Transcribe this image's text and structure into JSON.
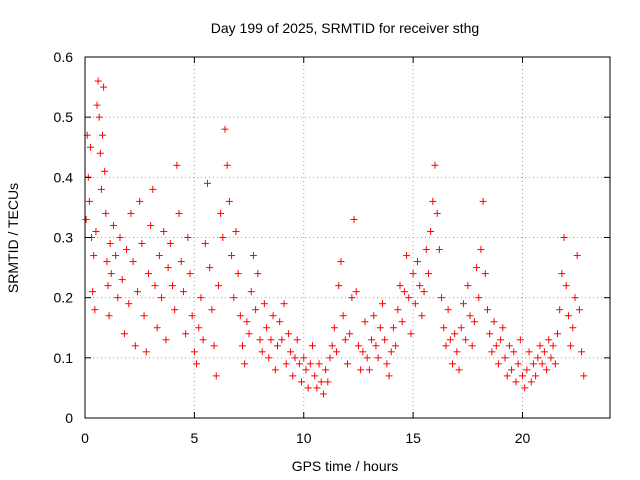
{
  "chart_data": {
    "type": "scatter",
    "title": "Day 199 of 2025, SRMTID for receiver sthg",
    "xlabel": "GPS time / hours",
    "ylabel": "SRMTID / TECUs",
    "xlim": [
      0,
      24
    ],
    "ylim": [
      0,
      0.6
    ],
    "x_ticks": [
      0,
      5,
      10,
      15,
      20
    ],
    "x_tick_labels": [
      "0",
      "5",
      "10",
      "15",
      "20"
    ],
    "y_ticks": [
      0,
      0.1,
      0.2,
      0.3,
      0.4,
      0.5,
      0.6
    ],
    "y_tick_labels": [
      "0",
      "0.1",
      "0.2",
      "0.3",
      "0.4",
      "0.5",
      "0.6"
    ],
    "grid": true,
    "marker": "+",
    "marker_color": "#ff0000",
    "series": [
      {
        "name": "SRMTID",
        "points": [
          [
            0.05,
            0.33
          ],
          [
            0.1,
            0.47
          ],
          [
            0.15,
            0.4
          ],
          [
            0.2,
            0.36
          ],
          [
            0.25,
            0.45
          ],
          [
            0.3,
            0.3
          ],
          [
            0.35,
            0.21
          ],
          [
            0.4,
            0.27
          ],
          [
            0.45,
            0.18
          ],
          [
            0.5,
            0.31
          ],
          [
            0.55,
            0.52
          ],
          [
            0.6,
            0.56
          ],
          [
            0.65,
            0.5
          ],
          [
            0.7,
            0.44
          ],
          [
            0.75,
            0.38
          ],
          [
            0.8,
            0.47
          ],
          [
            0.85,
            0.55
          ],
          [
            0.9,
            0.41
          ],
          [
            0.95,
            0.34
          ],
          [
            1.0,
            0.26
          ],
          [
            1.05,
            0.22
          ],
          [
            1.1,
            0.17
          ],
          [
            1.15,
            0.29
          ],
          [
            1.2,
            0.24
          ],
          [
            1.3,
            0.32
          ],
          [
            1.4,
            0.27
          ],
          [
            1.5,
            0.2
          ],
          [
            1.6,
            0.3
          ],
          [
            1.7,
            0.23
          ],
          [
            1.8,
            0.14
          ],
          [
            1.9,
            0.28
          ],
          [
            2.0,
            0.19
          ],
          [
            2.1,
            0.34
          ],
          [
            2.2,
            0.26
          ],
          [
            2.3,
            0.12
          ],
          [
            2.4,
            0.21
          ],
          [
            2.5,
            0.36
          ],
          [
            2.6,
            0.29
          ],
          [
            2.7,
            0.17
          ],
          [
            2.8,
            0.11
          ],
          [
            2.9,
            0.24
          ],
          [
            3.0,
            0.32
          ],
          [
            3.1,
            0.38
          ],
          [
            3.2,
            0.22
          ],
          [
            3.3,
            0.15
          ],
          [
            3.4,
            0.27
          ],
          [
            3.5,
            0.2
          ],
          [
            3.6,
            0.31
          ],
          [
            3.7,
            0.13
          ],
          [
            3.8,
            0.25
          ],
          [
            3.9,
            0.29
          ],
          [
            4.0,
            0.22
          ],
          [
            4.1,
            0.18
          ],
          [
            4.2,
            0.42
          ],
          [
            4.3,
            0.34
          ],
          [
            4.4,
            0.26
          ],
          [
            4.5,
            0.21
          ],
          [
            4.6,
            0.14
          ],
          [
            4.7,
            0.3
          ],
          [
            4.8,
            0.24
          ],
          [
            4.9,
            0.17
          ],
          [
            5.0,
            0.11
          ],
          [
            5.1,
            0.09
          ],
          [
            5.2,
            0.15
          ],
          [
            5.3,
            0.2
          ],
          [
            5.4,
            0.13
          ],
          [
            5.5,
            0.29
          ],
          [
            5.6,
            0.39
          ],
          [
            5.7,
            0.25
          ],
          [
            5.8,
            0.18
          ],
          [
            5.9,
            0.12
          ],
          [
            6.0,
            0.07
          ],
          [
            6.1,
            0.22
          ],
          [
            6.2,
            0.34
          ],
          [
            6.3,
            0.3
          ],
          [
            6.4,
            0.48
          ],
          [
            6.5,
            0.42
          ],
          [
            6.6,
            0.36
          ],
          [
            6.7,
            0.27
          ],
          [
            6.8,
            0.2
          ],
          [
            6.9,
            0.31
          ],
          [
            7.0,
            0.24
          ],
          [
            7.1,
            0.17
          ],
          [
            7.2,
            0.12
          ],
          [
            7.3,
            0.09
          ],
          [
            7.4,
            0.16
          ],
          [
            7.5,
            0.14
          ],
          [
            7.6,
            0.21
          ],
          [
            7.7,
            0.27
          ],
          [
            7.8,
            0.18
          ],
          [
            7.9,
            0.24
          ],
          [
            8.0,
            0.13
          ],
          [
            8.1,
            0.11
          ],
          [
            8.2,
            0.19
          ],
          [
            8.3,
            0.15
          ],
          [
            8.4,
            0.1
          ],
          [
            8.5,
            0.13
          ],
          [
            8.6,
            0.17
          ],
          [
            8.7,
            0.08
          ],
          [
            8.8,
            0.12
          ],
          [
            8.9,
            0.16
          ],
          [
            9.0,
            0.13
          ],
          [
            9.1,
            0.19
          ],
          [
            9.2,
            0.09
          ],
          [
            9.3,
            0.14
          ],
          [
            9.4,
            0.11
          ],
          [
            9.5,
            0.07
          ],
          [
            9.6,
            0.1
          ],
          [
            9.7,
            0.13
          ],
          [
            9.8,
            0.09
          ],
          [
            9.9,
            0.06
          ],
          [
            10.0,
            0.1
          ],
          [
            10.1,
            0.08
          ],
          [
            10.2,
            0.05
          ],
          [
            10.3,
            0.09
          ],
          [
            10.4,
            0.12
          ],
          [
            10.5,
            0.07
          ],
          [
            10.6,
            0.05
          ],
          [
            10.7,
            0.09
          ],
          [
            10.8,
            0.06
          ],
          [
            10.9,
            0.04
          ],
          [
            11.0,
            0.08
          ],
          [
            11.1,
            0.06
          ],
          [
            11.2,
            0.1
          ],
          [
            11.3,
            0.12
          ],
          [
            11.4,
            0.15
          ],
          [
            11.5,
            0.11
          ],
          [
            11.6,
            0.22
          ],
          [
            11.7,
            0.26
          ],
          [
            11.8,
            0.17
          ],
          [
            11.9,
            0.13
          ],
          [
            12.0,
            0.09
          ],
          [
            12.1,
            0.14
          ],
          [
            12.2,
            0.2
          ],
          [
            12.3,
            0.33
          ],
          [
            12.4,
            0.21
          ],
          [
            12.5,
            0.12
          ],
          [
            12.6,
            0.08
          ],
          [
            12.7,
            0.11
          ],
          [
            12.8,
            0.16
          ],
          [
            12.9,
            0.1
          ],
          [
            13.0,
            0.08
          ],
          [
            13.1,
            0.13
          ],
          [
            13.2,
            0.17
          ],
          [
            13.3,
            0.12
          ],
          [
            13.4,
            0.1
          ],
          [
            13.5,
            0.15
          ],
          [
            13.6,
            0.19
          ],
          [
            13.7,
            0.13
          ],
          [
            13.8,
            0.09
          ],
          [
            13.9,
            0.07
          ],
          [
            14.0,
            0.11
          ],
          [
            14.1,
            0.15
          ],
          [
            14.2,
            0.12
          ],
          [
            14.3,
            0.18
          ],
          [
            14.4,
            0.22
          ],
          [
            14.5,
            0.16
          ],
          [
            14.6,
            0.21
          ],
          [
            14.7,
            0.27
          ],
          [
            14.8,
            0.2
          ],
          [
            14.9,
            0.14
          ],
          [
            15.0,
            0.24
          ],
          [
            15.1,
            0.19
          ],
          [
            15.2,
            0.26
          ],
          [
            15.3,
            0.22
          ],
          [
            15.4,
            0.17
          ],
          [
            15.5,
            0.21
          ],
          [
            15.6,
            0.28
          ],
          [
            15.7,
            0.24
          ],
          [
            15.8,
            0.31
          ],
          [
            15.9,
            0.36
          ],
          [
            16.0,
            0.42
          ],
          [
            16.1,
            0.34
          ],
          [
            16.2,
            0.28
          ],
          [
            16.3,
            0.2
          ],
          [
            16.4,
            0.15
          ],
          [
            16.5,
            0.12
          ],
          [
            16.6,
            0.18
          ],
          [
            16.7,
            0.13
          ],
          [
            16.8,
            0.09
          ],
          [
            16.9,
            0.14
          ],
          [
            17.0,
            0.11
          ],
          [
            17.1,
            0.08
          ],
          [
            17.2,
            0.15
          ],
          [
            17.3,
            0.19
          ],
          [
            17.4,
            0.13
          ],
          [
            17.5,
            0.22
          ],
          [
            17.6,
            0.17
          ],
          [
            17.7,
            0.12
          ],
          [
            17.8,
            0.16
          ],
          [
            17.9,
            0.25
          ],
          [
            18.0,
            0.2
          ],
          [
            18.1,
            0.28
          ],
          [
            18.2,
            0.36
          ],
          [
            18.3,
            0.24
          ],
          [
            18.4,
            0.18
          ],
          [
            18.5,
            0.14
          ],
          [
            18.6,
            0.11
          ],
          [
            18.7,
            0.16
          ],
          [
            18.8,
            0.12
          ],
          [
            18.9,
            0.09
          ],
          [
            19.0,
            0.13
          ],
          [
            19.1,
            0.15
          ],
          [
            19.2,
            0.1
          ],
          [
            19.3,
            0.07
          ],
          [
            19.4,
            0.12
          ],
          [
            19.5,
            0.08
          ],
          [
            19.6,
            0.11
          ],
          [
            19.7,
            0.06
          ],
          [
            19.8,
            0.09
          ],
          [
            19.9,
            0.13
          ],
          [
            20.0,
            0.07
          ],
          [
            20.1,
            0.05
          ],
          [
            20.2,
            0.08
          ],
          [
            20.3,
            0.11
          ],
          [
            20.4,
            0.06
          ],
          [
            20.5,
            0.09
          ],
          [
            20.6,
            0.07
          ],
          [
            20.7,
            0.1
          ],
          [
            20.8,
            0.12
          ],
          [
            20.9,
            0.09
          ],
          [
            21.0,
            0.11
          ],
          [
            21.1,
            0.08
          ],
          [
            21.2,
            0.13
          ],
          [
            21.3,
            0.1
          ],
          [
            21.4,
            0.12
          ],
          [
            21.5,
            0.09
          ],
          [
            21.6,
            0.14
          ],
          [
            21.7,
            0.18
          ],
          [
            21.8,
            0.24
          ],
          [
            21.9,
            0.3
          ],
          [
            22.0,
            0.22
          ],
          [
            22.1,
            0.17
          ],
          [
            22.2,
            0.12
          ],
          [
            22.3,
            0.15
          ],
          [
            22.4,
            0.2
          ],
          [
            22.5,
            0.27
          ],
          [
            22.6,
            0.18
          ],
          [
            22.7,
            0.11
          ],
          [
            22.8,
            0.07
          ]
        ]
      }
    ]
  }
}
